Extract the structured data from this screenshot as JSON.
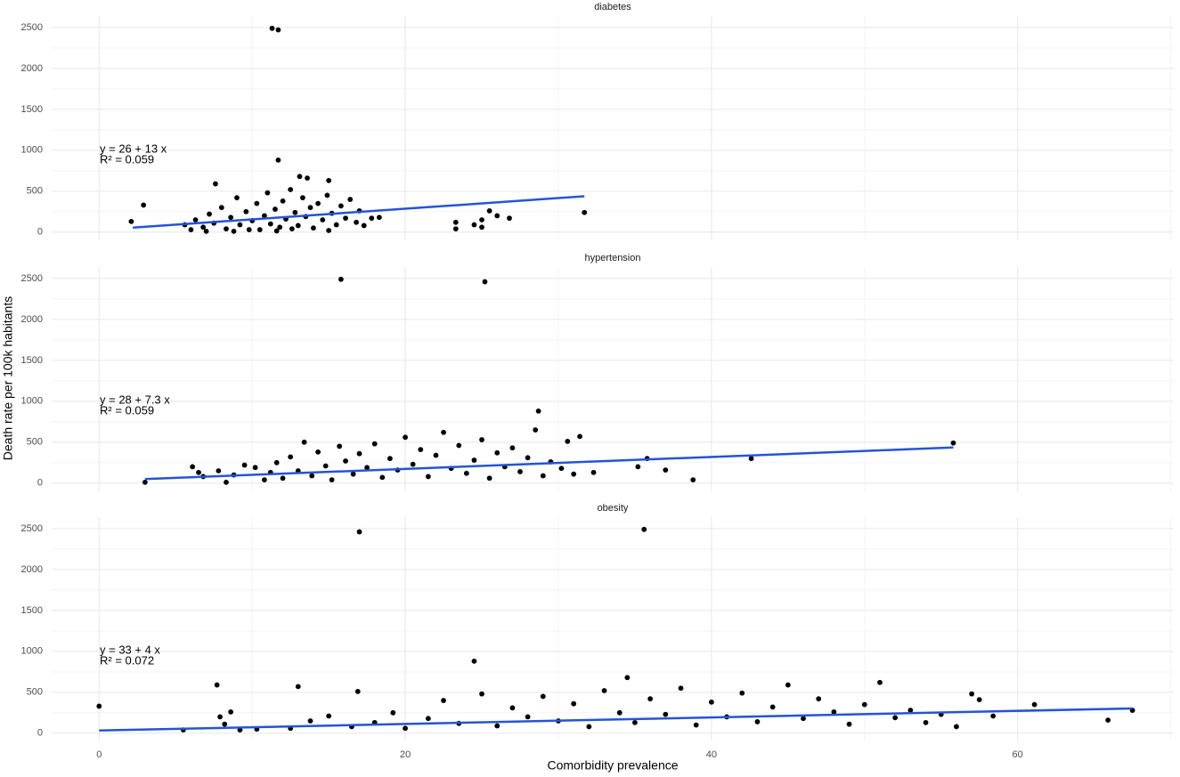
{
  "chart_data": [
    {
      "type": "scatter",
      "title": "diabetes",
      "x": [
        11.3,
        11.7,
        11.7,
        2.1,
        2.9,
        31.7,
        23.3,
        23.3,
        24.5,
        25,
        25.5,
        26,
        25,
        26.8,
        18.3,
        17.8,
        7.6,
        13.1,
        13.6,
        15,
        5.6,
        6,
        6.3,
        6.8,
        7.2,
        7.5,
        8,
        8.3,
        8.6,
        9,
        9.2,
        9.6,
        10,
        10.3,
        10.5,
        10.8,
        11,
        11.2,
        11.5,
        11.8,
        12,
        12.2,
        12.5,
        12.8,
        13,
        13.3,
        13.5,
        13.8,
        14,
        14.3,
        14.6,
        14.9,
        15.2,
        15.5,
        15.8,
        16.1,
        16.4,
        16.8,
        17,
        17.3,
        9.8,
        12.6,
        8.8,
        15,
        11.6,
        7
      ],
      "values": [
        2490,
        2470,
        880,
        130,
        330,
        240,
        120,
        40,
        90,
        150,
        260,
        200,
        60,
        170,
        180,
        170,
        590,
        680,
        660,
        630,
        90,
        30,
        150,
        60,
        220,
        110,
        300,
        40,
        180,
        420,
        90,
        250,
        140,
        350,
        30,
        200,
        480,
        100,
        280,
        60,
        380,
        160,
        520,
        240,
        80,
        420,
        190,
        300,
        50,
        350,
        150,
        450,
        230,
        90,
        320,
        170,
        400,
        120,
        260,
        80,
        30,
        40,
        10,
        20,
        15,
        10
      ],
      "color": "#000000",
      "fit": {
        "color": "#2554d6",
        "x": [
          2.2,
          31.7
        ],
        "values": [
          54.6,
          438.1
        ]
      },
      "annotation": [
        "y = 26 + 13 x",
        "R² = 0.059"
      ],
      "xlim": [
        -3.1,
        70.2
      ],
      "xticks": [
        0,
        20,
        40,
        60
      ],
      "x_minor_ticks": [
        10,
        30,
        50,
        70
      ],
      "ylim": [
        -100,
        2640
      ],
      "yticks": [
        0,
        500,
        1000,
        1500,
        2000,
        2500
      ],
      "y_minor_ticks": [
        250,
        750,
        1250,
        1750,
        2250
      ]
    },
    {
      "type": "scatter",
      "title": "hypertension",
      "ylabel": "Death rate per 100k habitants",
      "x": [
        15.8,
        25.2,
        28.7,
        3,
        6.1,
        6.5,
        6.8,
        7.8,
        8.3,
        8.8,
        9.5,
        10.2,
        10.8,
        11.2,
        11.6,
        12,
        12.5,
        13,
        13.4,
        13.9,
        14.3,
        14.8,
        15.2,
        15.7,
        16.1,
        16.6,
        17,
        17.5,
        18,
        18.5,
        19,
        19.5,
        20,
        20.5,
        21,
        21.5,
        22,
        22.5,
        23,
        23.5,
        24,
        24.5,
        25,
        25.5,
        26,
        26.5,
        27,
        27.5,
        28,
        28.5,
        29,
        29.5,
        30.2,
        30.6,
        31,
        31.4,
        32.3,
        35.2,
        35.8,
        37,
        38.8,
        42.6,
        55.8
      ],
      "values": [
        2490,
        2460,
        880,
        10,
        200,
        130,
        80,
        150,
        10,
        100,
        220,
        190,
        40,
        130,
        250,
        60,
        320,
        150,
        500,
        90,
        380,
        210,
        40,
        450,
        270,
        110,
        360,
        190,
        480,
        70,
        300,
        160,
        560,
        230,
        410,
        80,
        340,
        620,
        180,
        460,
        120,
        280,
        530,
        60,
        370,
        200,
        430,
        140,
        310,
        650,
        90,
        260,
        180,
        510,
        110,
        570,
        130,
        200,
        300,
        160,
        40,
        300,
        490
      ],
      "color": "#000000",
      "fit": {
        "color": "#2554d6",
        "x": [
          3,
          55.8
        ],
        "values": [
          49.9,
          435.3
        ]
      },
      "annotation": [
        "y = 28 + 7.3 x",
        "R² = 0.059"
      ],
      "xlim": [
        -3.1,
        70.2
      ],
      "xticks": [
        0,
        20,
        40,
        60
      ],
      "x_minor_ticks": [
        10,
        30,
        50,
        70
      ],
      "ylim": [
        -100,
        2640
      ],
      "yticks": [
        0,
        500,
        1000,
        1500,
        2000,
        2500
      ],
      "y_minor_ticks": [
        250,
        750,
        1250,
        1750,
        2250
      ]
    },
    {
      "type": "scatter",
      "title": "obesity",
      "xlabel": "Comorbidity prevalence",
      "x": [
        17,
        35.6,
        24.5,
        0,
        5.5,
        7.7,
        7.9,
        8.2,
        8.6,
        9.2,
        10.3,
        12.5,
        13,
        13.8,
        15,
        16.5,
        16.9,
        18,
        19.2,
        20,
        21.5,
        22.5,
        23.5,
        25,
        26,
        27,
        28,
        29,
        30,
        31,
        32,
        33,
        34,
        34.5,
        35,
        36,
        37,
        38,
        39,
        40,
        41,
        42,
        43,
        44,
        45,
        46,
        47,
        48,
        49,
        50,
        51,
        52,
        53,
        54,
        55,
        56,
        57,
        57.5,
        58.4,
        61.1,
        65.9,
        67.5
      ],
      "values": [
        2460,
        2490,
        880,
        330,
        40,
        590,
        200,
        110,
        260,
        40,
        50,
        60,
        570,
        150,
        210,
        80,
        510,
        130,
        250,
        60,
        180,
        400,
        120,
        480,
        90,
        310,
        200,
        450,
        150,
        360,
        80,
        520,
        250,
        680,
        130,
        420,
        230,
        550,
        100,
        380,
        200,
        490,
        140,
        320,
        590,
        180,
        420,
        260,
        110,
        350,
        620,
        190,
        280,
        130,
        230,
        80,
        480,
        410,
        210,
        350,
        160,
        280
      ],
      "color": "#000000",
      "fit": {
        "color": "#2554d6",
        "x": [
          0,
          67.5
        ],
        "values": [
          33,
          303
        ]
      },
      "annotation": [
        "y = 33 + 4 x",
        "R² = 0.072"
      ],
      "xlim": [
        -3.1,
        70.2
      ],
      "xticks": [
        0,
        20,
        40,
        60
      ],
      "x_minor_ticks": [
        10,
        30,
        50,
        70
      ],
      "ylim": [
        -100,
        2640
      ],
      "yticks": [
        0,
        500,
        1000,
        1500,
        2000,
        2500
      ],
      "y_minor_ticks": [
        250,
        750,
        1250,
        1750,
        2250
      ]
    }
  ]
}
